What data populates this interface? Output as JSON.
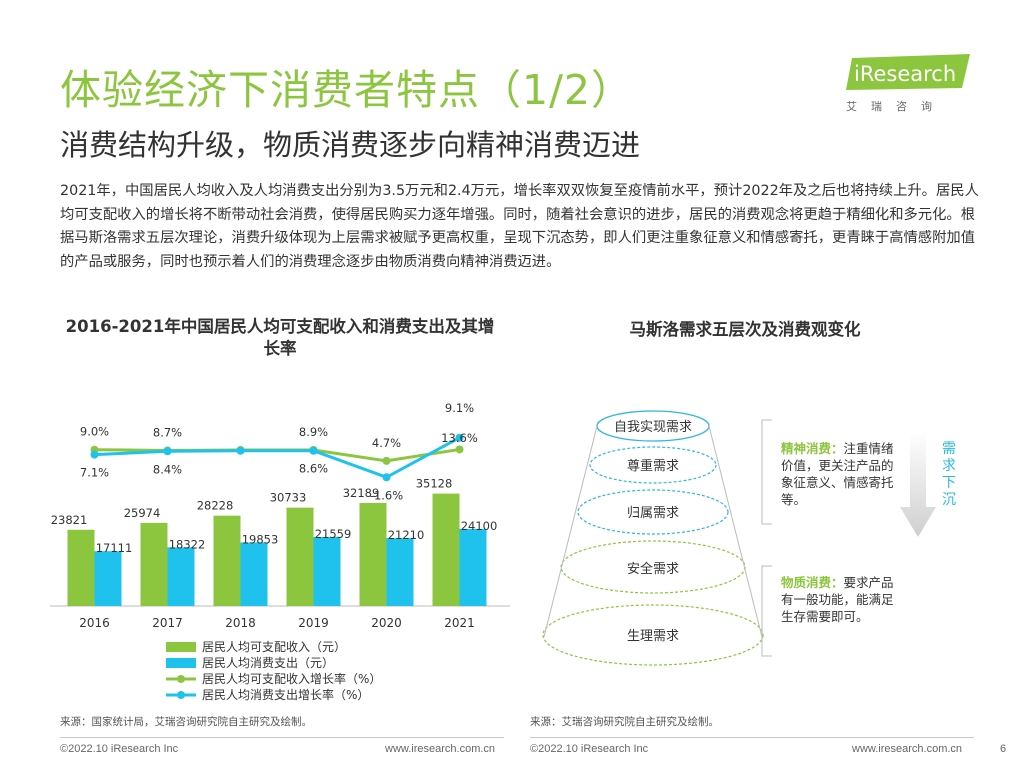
{
  "header": {
    "title": "体验经济下消费者特点（1/2）",
    "subtitle": "消费结构升级，物质消费逐步向精神消费迈进"
  },
  "logo": {
    "brand": "iResearch",
    "sub": "艾瑞咨询"
  },
  "paragraph": "2021年，中国居民人均收入及人均消费支出分别为3.5万元和2.4万元，增长率双双恢复至疫情前水平，预计2022年及之后也将持续上升。居民人均可支配收入的增长将不断带动社会消费，使得居民购买力逐年增强。同时，随着社会意识的进步，居民的消费观念将更趋于精细化和多元化。根据马斯洛需求五层次理论，消费升级体现为上层需求被赋予更高权重，呈现下沉态势，即人们更注重象征意义和情感寄托，更青睐于高情感附加值的产品或服务，同时也预示着人们的消费理念逐步由物质消费向精神消费迈进。",
  "chart_data": {
    "type": "bar",
    "title": "2016-2021年中国居民人均可支配收入和消费支出及其增长率",
    "categories": [
      "2016",
      "2017",
      "2018",
      "2019",
      "2020",
      "2021"
    ],
    "series": [
      {
        "name": "居民人均可支配收入（元）",
        "type": "bar",
        "color": "#8CC63F",
        "values": [
          23821,
          25974,
          28228,
          30733,
          32189,
          35128
        ]
      },
      {
        "name": "居民人均消费支出（元）",
        "type": "bar",
        "color": "#1EC2EC",
        "values": [
          17111,
          18322,
          19853,
          21559,
          21210,
          24100
        ]
      },
      {
        "name": "居民人均可支配收入增长率（%）",
        "type": "line",
        "color": "#8CC63F",
        "values": [
          9.0,
          8.7,
          8.9,
          8.9,
          4.7,
          9.1
        ],
        "labels": [
          "9.0%",
          "8.7%",
          "",
          "8.9%",
          "4.7%",
          "9.1%"
        ]
      },
      {
        "name": "居民人均消费支出增长率（%）",
        "type": "line",
        "color": "#1EC2EC",
        "values": [
          7.1,
          8.4,
          8.6,
          8.6,
          -1.6,
          13.6
        ],
        "labels": [
          "7.1%",
          "8.4%",
          "",
          "8.6%",
          "-1.6%",
          "13.6%"
        ]
      }
    ]
  },
  "maslow": {
    "title": "马斯洛需求五层次及消费观变化",
    "layers": [
      "自我实现需求",
      "尊重需求",
      "归属需求",
      "安全需求",
      "生理需求"
    ],
    "spiritual": {
      "head": "精神消费：",
      "body": "注重情绪价值，更关注产品的象征意义、情感寄托等。"
    },
    "material": {
      "head": "物质消费：",
      "body": "要求产品有一般功能，能满足生存需要即可。"
    },
    "arrow_text": "需求下沉"
  },
  "sources": {
    "left": "来源：国家统计局，艾瑞咨询研究院自主研究及绘制。",
    "right": "来源：艾瑞咨询研究院自主研究及绘制。"
  },
  "footer": {
    "left_copy": "©2022.10 iResearch Inc",
    "left_url": "www.iresearch.com.cn",
    "right_copy": "©2022.10 iResearch Inc",
    "right_url": "www.iresearch.com.cn",
    "page": "6"
  }
}
